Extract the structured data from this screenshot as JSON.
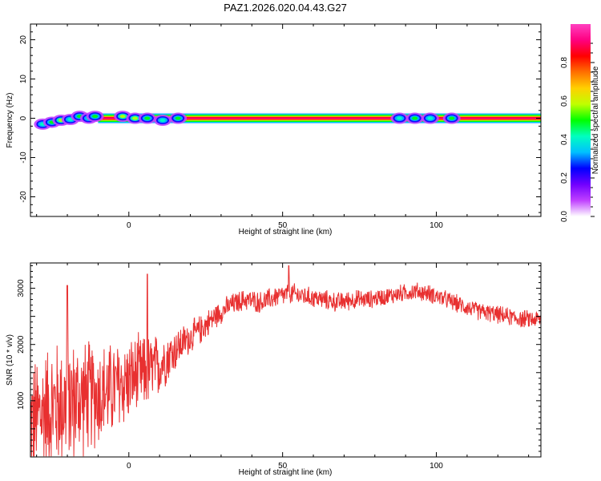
{
  "title": "PAZ1.2026.020.04.43.G27",
  "chart_data": [
    {
      "type": "heatmap",
      "title": "PAZ1.2026.020.04.43.G27",
      "xlabel": "Height of straight line (km)",
      "ylabel": "Frequency (Hz)",
      "xlim": [
        -32,
        134
      ],
      "ylim": [
        -25,
        24
      ],
      "xticks": [
        0,
        50,
        100
      ],
      "yticks": [
        20,
        10,
        0,
        -10,
        -20
      ],
      "colorbar": {
        "label": "Normalized spectral amplitude",
        "range": [
          0,
          1
        ],
        "ticks": [
          "0.0",
          "0.2",
          "0.4",
          "0.6",
          "0.8"
        ],
        "tick_values": [
          0,
          0.2,
          0.4,
          0.6,
          0.8
        ],
        "colors": [
          "#ffffff",
          "#c040ff",
          "#7000ff",
          "#0000ff",
          "#00c0ff",
          "#00ffc0",
          "#00ff00",
          "#c0ff00",
          "#ffd000",
          "#ff7000",
          "#ff0000",
          "#ff0080",
          "#ff40c0"
        ]
      },
      "ridge": {
        "x_start": -10,
        "x_end": 134,
        "frequency_hz": 0
      },
      "blobs": [
        {
          "x": -28,
          "y": -1.5,
          "amp": 0.45
        },
        {
          "x": -25,
          "y": -1.0,
          "amp": 0.5
        },
        {
          "x": -22,
          "y": -0.5,
          "amp": 0.55
        },
        {
          "x": -19,
          "y": -0.3,
          "amp": 0.45
        },
        {
          "x": -16,
          "y": 0.5,
          "amp": 0.5
        },
        {
          "x": -13,
          "y": 0.0,
          "amp": 0.45
        },
        {
          "x": -11,
          "y": 0.5,
          "amp": 0.5
        },
        {
          "x": -2,
          "y": 0.5,
          "amp": 0.6
        },
        {
          "x": 2,
          "y": 0.0,
          "amp": 0.55
        },
        {
          "x": 6,
          "y": 0.0,
          "amp": 0.5
        },
        {
          "x": 11,
          "y": -0.5,
          "amp": 0.45
        },
        {
          "x": 16,
          "y": 0.0,
          "amp": 0.5
        },
        {
          "x": 88,
          "y": 0.0,
          "amp": 0.45
        },
        {
          "x": 93,
          "y": 0.0,
          "amp": 0.5
        },
        {
          "x": 98,
          "y": 0.0,
          "amp": 0.45
        },
        {
          "x": 105,
          "y": 0.0,
          "amp": 0.5
        }
      ]
    },
    {
      "type": "line",
      "xlabel": "Height of straight line (km)",
      "ylabel": "SNR (10 * v/v)",
      "xlim": [
        -32,
        134
      ],
      "ylim": [
        0,
        3450
      ],
      "xticks": [
        0,
        50,
        100
      ],
      "yticks": [
        1000,
        2000,
        3000
      ],
      "series": [
        {
          "name": "SNR",
          "color": "#e83030",
          "x": [
            -32,
            -27,
            -22,
            -17,
            -12,
            -7,
            -2,
            3,
            8,
            13,
            18,
            23,
            28,
            33,
            38,
            43,
            48,
            53,
            58,
            63,
            68,
            73,
            78,
            83,
            88,
            93,
            98,
            103,
            108,
            113,
            118,
            123,
            128,
            134
          ],
          "mean": [
            600,
            850,
            950,
            1000,
            1100,
            1150,
            1300,
            1450,
            1550,
            1800,
            2050,
            2250,
            2500,
            2700,
            2800,
            2750,
            2850,
            2900,
            2850,
            2800,
            2750,
            2800,
            2800,
            2850,
            2900,
            2950,
            2900,
            2800,
            2700,
            2600,
            2550,
            2500,
            2450,
            2450
          ],
          "amplitude": [
            1200,
            1300,
            1300,
            1250,
            1100,
            1000,
            900,
            800,
            700,
            500,
            350,
            300,
            250,
            220,
            220,
            220,
            220,
            220,
            200,
            200,
            200,
            200,
            180,
            180,
            180,
            180,
            180,
            180,
            180,
            180,
            180,
            180,
            180,
            180
          ],
          "peaks": [
            {
              "x": -20,
              "y": 3050
            },
            {
              "x": 6,
              "y": 3250
            },
            {
              "x": 52,
              "y": 3400
            }
          ]
        }
      ]
    }
  ]
}
